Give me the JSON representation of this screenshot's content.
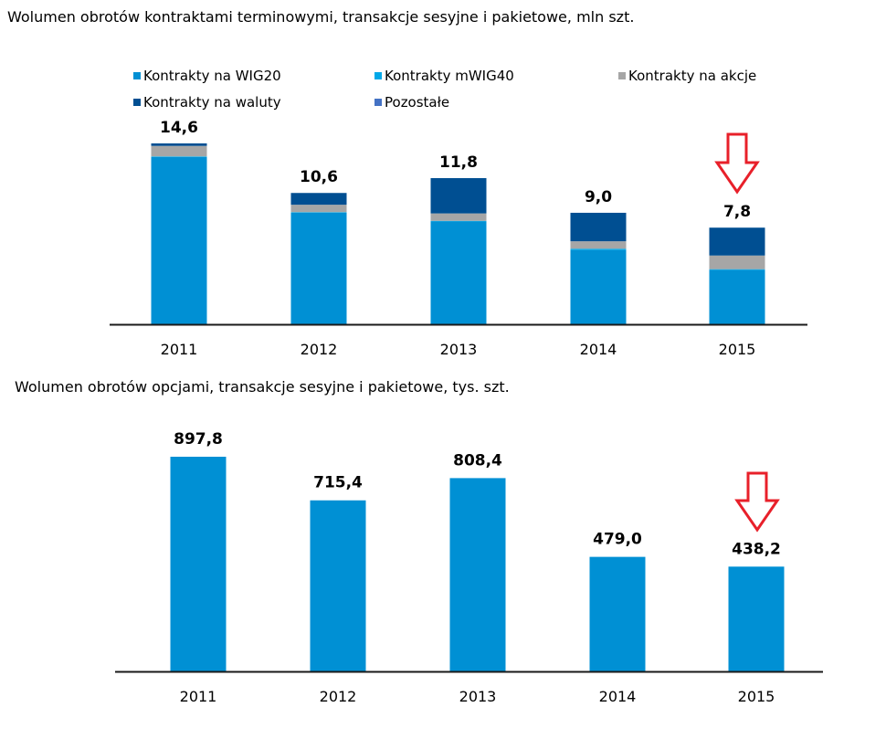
{
  "chart_data": [
    {
      "type": "bar",
      "stacked": true,
      "title": "Wolumen obrotów kontraktami terminowymi, transakcje sesyjne i pakietowe, mln szt.",
      "xlabel": "",
      "ylabel": "",
      "categories": [
        "2011",
        "2012",
        "2013",
        "2014",
        "2015"
      ],
      "totals": [
        "14,6",
        "10,6",
        "11,8",
        "9,0",
        "7,8"
      ],
      "total_values": [
        14.6,
        10.6,
        11.8,
        9.0,
        7.8
      ],
      "series": [
        {
          "name": "Kontrakty na WIG20",
          "color": "#0090d4",
          "values": [
            13.5,
            9.0,
            8.3,
            6.0,
            4.4
          ]
        },
        {
          "name": "Kontrakty mWIG40",
          "color": "#00a8e8",
          "values": [
            0.05,
            0.05,
            0.05,
            0.1,
            0.05
          ]
        },
        {
          "name": "Kontrakty na akcje",
          "color": "#a6a6a6",
          "values": [
            0.85,
            0.6,
            0.6,
            0.6,
            1.1
          ]
        },
        {
          "name": "Kontrakty na waluty",
          "color": "#004f92",
          "values": [
            0.2,
            0.95,
            2.85,
            2.3,
            2.25
          ]
        },
        {
          "name": "Pozostałe",
          "color": "#4472c4",
          "values": [
            0,
            0,
            0,
            0,
            0
          ]
        }
      ],
      "ylim": [
        0,
        14.6
      ],
      "grid": false,
      "legend": "top",
      "annotation": "red down arrow above 2015"
    },
    {
      "type": "bar",
      "title": "Wolumen obrotów opcjami, transakcje sesyjne i pakietowe, tys. szt.",
      "xlabel": "",
      "ylabel": "",
      "categories": [
        "2011",
        "2012",
        "2013",
        "2014",
        "2015"
      ],
      "labels": [
        "897,8",
        "715,4",
        "808,4",
        "479,0",
        "438,2"
      ],
      "values": [
        897.8,
        715.4,
        808.4,
        479.0,
        438.2
      ],
      "color": "#0090d4",
      "ylim": [
        0,
        897.8
      ],
      "grid": false,
      "annotation": "red down arrow above 2015"
    }
  ]
}
